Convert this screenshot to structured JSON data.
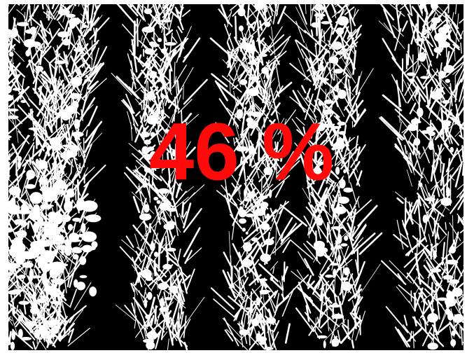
{
  "overlay": {
    "label": "46 %"
  }
}
